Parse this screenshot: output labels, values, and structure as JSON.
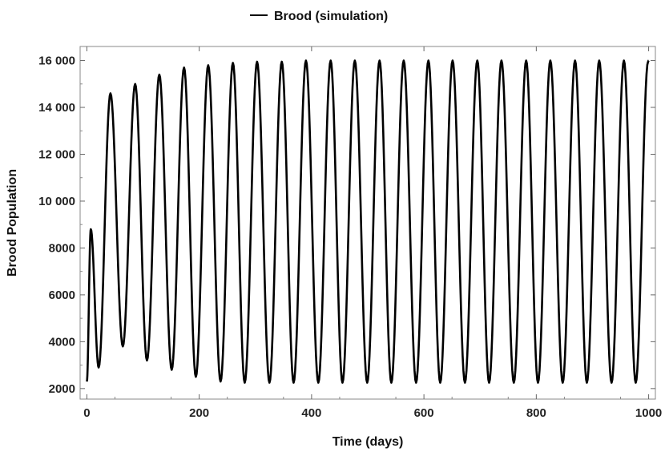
{
  "chart_data": {
    "type": "line",
    "title": "",
    "xlabel": "Time (days)",
    "ylabel": "Brood Population",
    "xlim": [
      -12,
      1012
    ],
    "ylim": [
      1550,
      16600
    ],
    "x_ticks": [
      0,
      200,
      400,
      600,
      800,
      1000
    ],
    "x_tick_labels": [
      "0",
      "200",
      "400",
      "600",
      "800",
      "1000"
    ],
    "y_ticks": [
      2000,
      4000,
      6000,
      8000,
      10000,
      12000,
      14000,
      16000
    ],
    "y_tick_labels": [
      "2000",
      "4000",
      "6000",
      "8000",
      "10 000",
      "12 000",
      "14 000",
      "16 000"
    ],
    "legend_position": "top-center",
    "grid": false,
    "series": [
      {
        "name": "Brood (simulation)",
        "color": "#000000",
        "period_days": 43.5,
        "x": [
          0,
          7,
          21,
          42,
          64,
          86,
          107,
          129,
          151,
          173,
          194,
          216,
          238,
          260,
          281,
          303,
          325,
          347,
          368,
          390,
          412,
          434,
          455,
          477,
          499,
          521,
          542,
          564,
          586,
          608,
          629,
          651,
          673,
          695,
          716,
          738,
          760,
          782,
          803,
          825,
          847,
          869,
          890,
          912,
          934,
          956,
          977,
          999,
          1000
        ],
        "y": [
          2300,
          8800,
          2900,
          14600,
          3800,
          15000,
          3200,
          15400,
          2800,
          15700,
          2500,
          15800,
          2300,
          15900,
          2250,
          15950,
          2250,
          15950,
          2250,
          16000,
          2250,
          16000,
          2250,
          16000,
          2250,
          16000,
          2250,
          16000,
          2250,
          16000,
          2250,
          16000,
          2250,
          16000,
          2250,
          16000,
          2250,
          16000,
          2250,
          16000,
          2250,
          16000,
          2250,
          16000,
          2250,
          16000,
          2250,
          15950,
          16000
        ]
      }
    ]
  }
}
